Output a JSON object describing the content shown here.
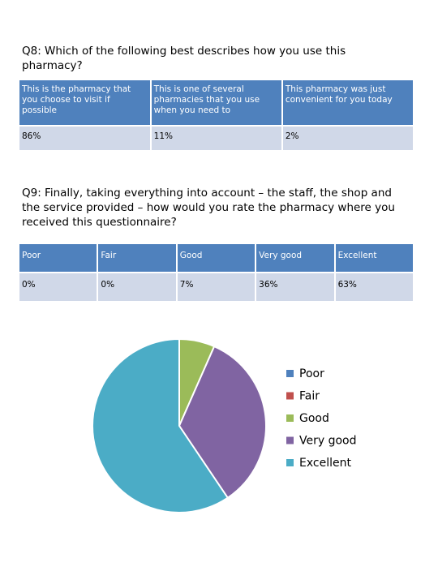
{
  "q8": {
    "title": "Q8: Which of the following best describes how you use this pharmacy?",
    "headers": [
      "This is the pharmacy that you choose to visit if possible",
      "This is one of several pharmacies that you use when you need to",
      "This pharmacy was just convenient for you today"
    ],
    "values": [
      "86%",
      "11%",
      "2%"
    ]
  },
  "q9": {
    "title": "Q9: Finally, taking everything into account – the staff, the shop and the service provided – how would you rate the pharmacy where you received this questionnaire?",
    "headers": [
      "Poor",
      "Fair",
      "Good",
      "Very good",
      "Excellent"
    ],
    "values": [
      "0%",
      "0%",
      "7%",
      "36%",
      "63%"
    ]
  },
  "colors": {
    "header_bg": "#4f81bd",
    "row_bg": "#d0d8e8",
    "header_text": "#ffffff"
  },
  "chart_data": {
    "type": "pie",
    "title": "",
    "categories": [
      "Poor",
      "Fair",
      "Good",
      "Very good",
      "Excellent"
    ],
    "values": [
      0,
      0,
      7,
      36,
      63
    ],
    "colors": [
      "#4f81bd",
      "#c0504d",
      "#9bbb59",
      "#8064a2",
      "#4bacc6"
    ],
    "legend": "right",
    "start_angle_deg": 0,
    "direction": "clockwise"
  }
}
